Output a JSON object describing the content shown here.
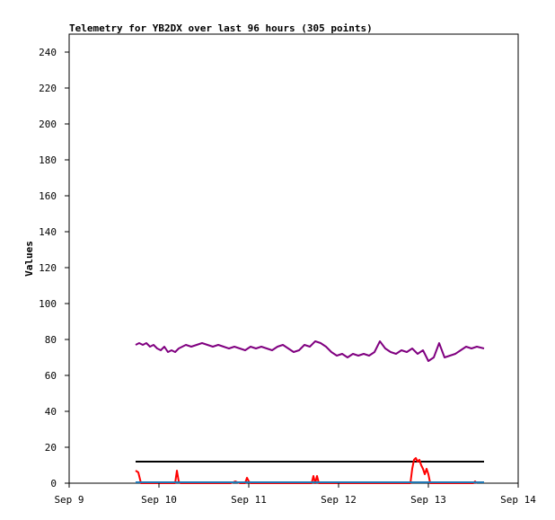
{
  "chart_data": {
    "type": "line",
    "title": "Telemetry for YB2DX over last 96 hours (305 points)",
    "xlabel": "",
    "ylabel": "Values",
    "x_tick_labels": [
      "Sep 9",
      "Sep 10",
      "Sep 11",
      "Sep 12",
      "Sep 13",
      "Sep 14"
    ],
    "x_tick_days": [
      9,
      10,
      11,
      12,
      13,
      14
    ],
    "xlim_days": [
      9,
      14
    ],
    "y_ticks": [
      0,
      20,
      40,
      60,
      80,
      100,
      120,
      140,
      160,
      180,
      200,
      220,
      240
    ],
    "ylim": [
      0,
      240
    ],
    "grid": false,
    "legend": "none",
    "colors": {
      "series_1": "#800080",
      "series_2": "#000000",
      "series_3": "#ff0000",
      "series_4": "#1f77b4",
      "axis": "#000000"
    },
    "series": [
      {
        "color": "#800080",
        "x_days": [
          9.74,
          9.78,
          9.82,
          9.86,
          9.9,
          9.94,
          9.98,
          10.02,
          10.06,
          10.1,
          10.14,
          10.18,
          10.22,
          10.26,
          10.3,
          10.36,
          10.42,
          10.48,
          10.54,
          10.6,
          10.66,
          10.72,
          10.78,
          10.84,
          10.9,
          10.96,
          11.02,
          11.08,
          11.14,
          11.2,
          11.26,
          11.32,
          11.38,
          11.44,
          11.5,
          11.56,
          11.62,
          11.68,
          11.74,
          11.8,
          11.86,
          11.92,
          11.98,
          12.04,
          12.1,
          12.16,
          12.22,
          12.28,
          12.34,
          12.4,
          12.46,
          12.52,
          12.58,
          12.64,
          12.7,
          12.76,
          12.82,
          12.88,
          12.94,
          13.0,
          13.06,
          13.12,
          13.18,
          13.24,
          13.3,
          13.36,
          13.42,
          13.48,
          13.54,
          13.62
        ],
        "y": [
          77,
          78,
          77,
          78,
          76,
          77,
          75,
          74,
          76,
          73,
          74,
          73,
          75,
          76,
          77,
          76,
          77,
          78,
          77,
          76,
          77,
          76,
          75,
          76,
          75,
          74,
          76,
          75,
          76,
          75,
          74,
          76,
          77,
          75,
          73,
          74,
          77,
          76,
          79,
          78,
          76,
          73,
          71,
          72,
          70,
          72,
          71,
          72,
          71,
          73,
          79,
          75,
          73,
          72,
          74,
          73,
          75,
          72,
          74,
          68,
          70,
          78,
          70,
          71,
          72,
          74,
          76,
          75,
          76,
          75
        ]
      },
      {
        "color": "#000000",
        "x_days": [
          9.74,
          13.62
        ],
        "y": [
          12,
          12
        ]
      },
      {
        "color": "#ff0000",
        "x_days": [
          9.74,
          9.77,
          9.8,
          9.83,
          10.18,
          10.2,
          10.22,
          10.24,
          10.8,
          10.85,
          10.9,
          10.96,
          10.98,
          11.0,
          11.02,
          11.7,
          11.72,
          11.74,
          11.76,
          11.78,
          11.8,
          11.82,
          12.8,
          12.82,
          12.84,
          12.86,
          12.88,
          12.9,
          12.92,
          12.94,
          12.96,
          12.98,
          13.0,
          13.02,
          13.5,
          13.52,
          13.54
        ],
        "y": [
          7,
          6,
          0,
          0,
          0,
          7,
          1,
          0,
          0,
          1,
          0,
          0,
          3,
          1,
          0,
          0,
          4,
          0,
          4,
          0,
          0,
          0,
          0,
          8,
          13,
          14,
          12,
          13,
          10,
          8,
          5,
          8,
          5,
          0,
          0,
          1,
          0
        ]
      },
      {
        "color": "#1f77b4",
        "x_days": [
          9.74,
          13.62
        ],
        "y": [
          0.5,
          0.5
        ]
      }
    ]
  }
}
